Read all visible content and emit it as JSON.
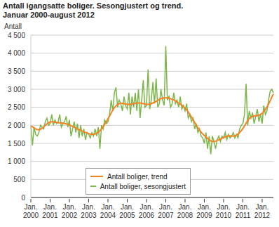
{
  "chart_data": {
    "type": "line",
    "title": "Antall igangsatte boliger. Sesongjustert og trend.",
    "subtitle": "Januar 2000-august 2012",
    "y_label": "Antall",
    "categories": [
      "Jan. 2000",
      null,
      null,
      null,
      null,
      null,
      null,
      null,
      null,
      null,
      null,
      null,
      "Jan. 2001",
      null,
      null,
      null,
      null,
      null,
      null,
      null,
      null,
      null,
      null,
      null,
      "Jan. 2002",
      null,
      null,
      null,
      null,
      null,
      null,
      null,
      null,
      null,
      null,
      null,
      "Jan. 2003",
      null,
      null,
      null,
      null,
      null,
      null,
      null,
      null,
      null,
      null,
      null,
      "Jan. 2004",
      null,
      null,
      null,
      null,
      null,
      null,
      null,
      null,
      null,
      null,
      null,
      "Jan. 2005",
      null,
      null,
      null,
      null,
      null,
      null,
      null,
      null,
      null,
      null,
      null,
      "Jan. 2006",
      null,
      null,
      null,
      null,
      null,
      null,
      null,
      null,
      null,
      null,
      null,
      "Jan. 2007",
      null,
      null,
      null,
      null,
      null,
      null,
      null,
      null,
      null,
      null,
      null,
      "Jan. 2008",
      null,
      null,
      null,
      null,
      null,
      null,
      null,
      null,
      null,
      null,
      null,
      "Jan. 2009",
      null,
      null,
      null,
      null,
      null,
      null,
      null,
      null,
      null,
      null,
      null,
      "Jan. 2010",
      null,
      null,
      null,
      null,
      null,
      null,
      null,
      null,
      null,
      null,
      null,
      "Jan. 2011",
      null,
      null,
      null,
      null,
      null,
      null,
      null,
      null,
      null,
      null,
      null,
      "Jan. 2012",
      null,
      null,
      null,
      null,
      null,
      null,
      null
    ],
    "series": [
      {
        "name": "Antall boliger, trend",
        "color": "#f58220",
        "values": [
          1980,
          1960,
          1930,
          1900,
          1880,
          1880,
          1890,
          1920,
          1960,
          2000,
          2040,
          2070,
          2090,
          2100,
          2100,
          2090,
          2080,
          2070,
          2070,
          2070,
          2060,
          2050,
          2040,
          2030,
          2010,
          1990,
          1970,
          1950,
          1920,
          1900,
          1880,
          1860,
          1840,
          1820,
          1800,
          1790,
          1770,
          1760,
          1750,
          1750,
          1760,
          1780,
          1810,
          1850,
          1900,
          1960,
          2030,
          2100,
          2180,
          2260,
          2340,
          2420,
          2490,
          2540,
          2580,
          2600,
          2610,
          2610,
          2600,
          2590,
          2580,
          2580,
          2580,
          2590,
          2600,
          2610,
          2620,
          2620,
          2620,
          2610,
          2600,
          2590,
          2580,
          2580,
          2590,
          2600,
          2620,
          2640,
          2660,
          2690,
          2720,
          2740,
          2750,
          2760,
          2760,
          2760,
          2750,
          2740,
          2720,
          2700,
          2680,
          2650,
          2620,
          2590,
          2560,
          2520,
          2480,
          2430,
          2370,
          2300,
          2230,
          2160,
          2080,
          2000,
          1930,
          1870,
          1810,
          1760,
          1720,
          1680,
          1640,
          1600,
          1570,
          1550,
          1550,
          1560,
          1580,
          1600,
          1620,
          1640,
          1660,
          1680,
          1700,
          1710,
          1710,
          1700,
          1700,
          1710,
          1730,
          1760,
          1800,
          1850,
          1910,
          1980,
          2060,
          2130,
          2190,
          2230,
          2250,
          2260,
          2260,
          2270,
          2280,
          2300,
          2330,
          2380,
          2440,
          2510,
          2590,
          2680,
          2780,
          2870
        ]
      },
      {
        "name": "Antall boliger, sesongjustert",
        "color": "#7ab648",
        "values": [
          2000,
          1450,
          1950,
          1750,
          1700,
          1800,
          2000,
          1950,
          1900,
          2100,
          2200,
          2000,
          2050,
          2300,
          2000,
          2150,
          2050,
          2100,
          2300,
          1950,
          2050,
          2100,
          2250,
          1950,
          2150,
          1700,
          1900,
          2100,
          1800,
          2050,
          1650,
          2000,
          1700,
          1900,
          1600,
          1800,
          1750,
          1650,
          1800,
          1700,
          1900,
          1700,
          1950,
          1350,
          2000,
          1900,
          2150,
          2050,
          2100,
          2300,
          2700,
          2400,
          2900,
          3050,
          2500,
          2700,
          2600,
          2400,
          2800,
          2550,
          2450,
          2900,
          2300,
          2800,
          2500,
          2900,
          2400,
          3000,
          2200,
          2700,
          3250,
          2500,
          2550,
          3550,
          2450,
          2700,
          3200,
          2600,
          3300,
          2500,
          2600,
          3000,
          2700,
          2550,
          4200,
          2700,
          2800,
          2500,
          2600,
          2900,
          2600,
          2700,
          2500,
          2800,
          2450,
          2550,
          2400,
          2600,
          2200,
          2300,
          2100,
          2200,
          1900,
          2050,
          1800,
          1900,
          1700,
          1650,
          1500,
          1800,
          1350,
          1700,
          1200,
          1700,
          1550,
          1350,
          1600,
          1700,
          1550,
          1700,
          1650,
          1800,
          1600,
          1750,
          1650,
          1700,
          1800,
          1650,
          1750,
          1650,
          1900,
          2000,
          2050,
          2300,
          3150,
          2000,
          2400,
          2200,
          2350,
          2050,
          2250,
          2450,
          2100,
          2300,
          2050,
          2550,
          2300,
          2400,
          2700,
          2950,
          3000,
          2900
        ]
      }
    ],
    "ylim": [
      0,
      4500
    ],
    "yticks": [
      0,
      500,
      {
        "value": 1000,
        "label": "1 000"
      },
      {
        "value": 1500,
        "label": "1 500"
      },
      {
        "value": 2000,
        "label": "2 000"
      },
      {
        "value": 2500,
        "label": "2 500"
      },
      {
        "value": 3000,
        "label": "3 000"
      },
      {
        "value": 3500,
        "label": "3 500"
      },
      {
        "value": 4000,
        "label": "4 000"
      },
      {
        "value": 4500,
        "label": "4 500"
      }
    ],
    "grid": true,
    "legend": "lower center"
  }
}
